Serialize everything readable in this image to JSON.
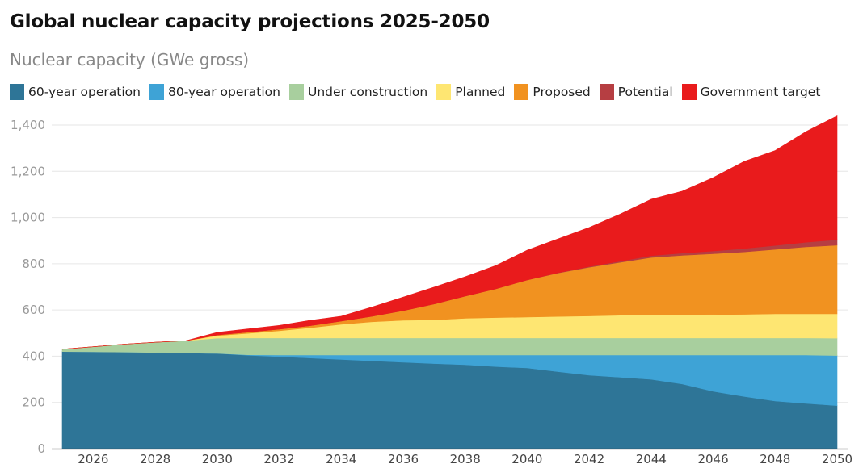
{
  "chart_data": {
    "type": "area",
    "stacked": true,
    "title": "Global nuclear capacity projections 2025-2050",
    "subtitle": "Nuclear capacity (GWe gross)",
    "xlabel": "",
    "ylabel": "Nuclear capacity (GWe gross)",
    "ylim": [
      0,
      1400
    ],
    "yticks": [
      0,
      200,
      400,
      600,
      800,
      1000,
      1200,
      1400
    ],
    "ytick_labels": [
      "0",
      "200",
      "400",
      "600",
      "800",
      "1,000",
      "1,200",
      "1,400"
    ],
    "xlim": [
      2025,
      2050
    ],
    "xticks": [
      2026,
      2028,
      2030,
      2032,
      2034,
      2036,
      2038,
      2040,
      2042,
      2044,
      2046,
      2048,
      2050
    ],
    "xtick_labels": [
      "2026",
      "2028",
      "2030",
      "2032",
      "2034",
      "2036",
      "2038",
      "2040",
      "2042",
      "2044",
      "2046",
      "2048",
      "2050"
    ],
    "grid": true,
    "legend_position": "top-left",
    "x": [
      2025,
      2026,
      2027,
      2028,
      2029,
      2030,
      2031,
      2032,
      2033,
      2034,
      2035,
      2036,
      2037,
      2038,
      2039,
      2040,
      2041,
      2042,
      2043,
      2044,
      2045,
      2046,
      2047,
      2048,
      2049,
      2050
    ],
    "series": [
      {
        "name": "60-year operation",
        "color": "#2e7597",
        "values": [
          420,
          419,
          418,
          416,
          414,
          412,
          404,
          398,
          392,
          386,
          380,
          374,
          368,
          363,
          355,
          349,
          333,
          318,
          309,
          300,
          280,
          248,
          226,
          206,
          196,
          186
        ]
      },
      {
        "name": "80-year operation",
        "color": "#3ea3d6",
        "values": [
          0,
          0,
          0,
          0,
          0,
          0,
          2,
          7,
          13,
          19,
          25,
          31,
          37,
          42,
          50,
          56,
          72,
          87,
          96,
          105,
          125,
          157,
          179,
          199,
          209,
          217
        ]
      },
      {
        "name": "Under construction",
        "color": "#a8cf9e",
        "values": [
          10,
          22,
          34,
          44,
          53,
          66,
          73,
          74,
          74,
          74,
          74,
          74,
          74,
          74,
          74,
          74,
          74,
          74,
          74,
          74,
          74,
          74,
          74,
          74,
          74,
          75
        ]
      },
      {
        "name": "Planned",
        "color": "#fee672",
        "values": [
          0,
          0,
          0,
          0,
          0,
          11,
          20,
          31,
          44,
          59,
          70,
          76,
          78,
          85,
          88,
          90,
          93,
          95,
          98,
          100,
          100,
          101,
          102,
          104,
          104,
          105
        ]
      },
      {
        "name": "Proposed",
        "color": "#f19220",
        "values": [
          0,
          0,
          0,
          0,
          0,
          3,
          5,
          7,
          9,
          14,
          24,
          42,
          69,
          96,
          125,
          161,
          188,
          211,
          229,
          248,
          257,
          263,
          270,
          279,
          290,
          297
        ]
      },
      {
        "name": "Potential",
        "color": "#b63e42",
        "values": [
          0,
          0,
          0,
          0,
          0,
          0,
          0,
          0,
          0,
          0,
          0,
          0,
          0,
          0,
          0,
          0,
          1,
          3,
          5,
          8,
          10,
          12,
          15,
          17,
          20,
          24
        ]
      },
      {
        "name": "Government target",
        "color": "#e91b1c",
        "values": [
          0,
          0,
          0,
          0,
          0,
          11,
          14,
          16,
          23,
          21,
          40,
          59,
          73,
          84,
          101,
          129,
          147,
          169,
          204,
          244,
          268,
          318,
          377,
          411,
          479,
          536
        ]
      }
    ]
  },
  "colors": {
    "gridline": "#e6e6e6",
    "axis": "#333333"
  }
}
